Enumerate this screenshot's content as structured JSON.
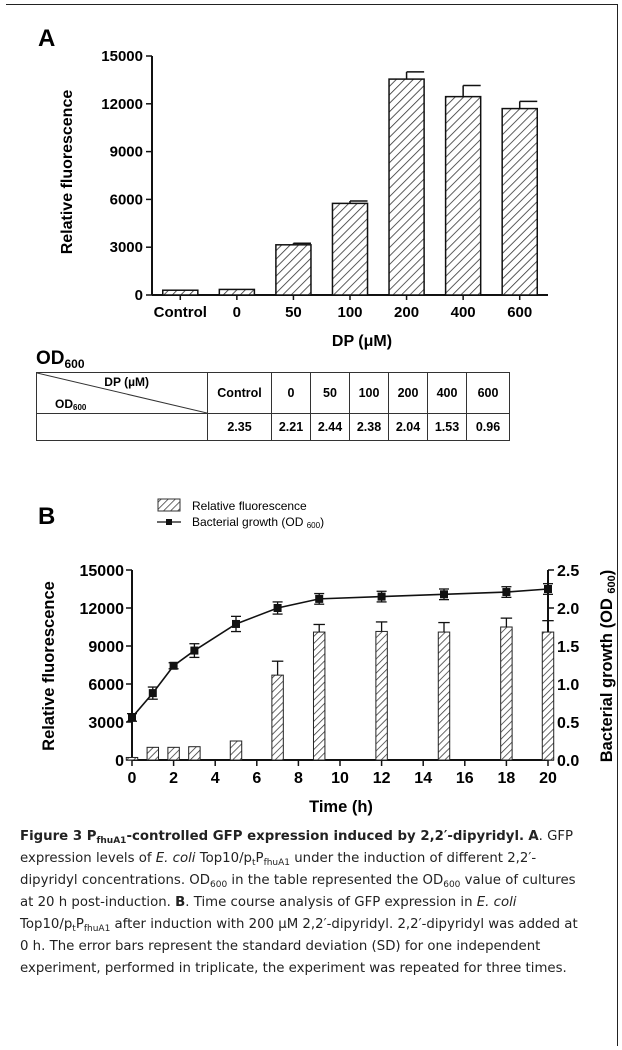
{
  "panel_a": {
    "letter": "A",
    "od_label_main": "OD",
    "od_label_sub": "600",
    "table": {
      "header_top": "DP (µM)",
      "header_bottom_main": "OD",
      "header_bottom_sub": "600",
      "columns": [
        "Control",
        "0",
        "50",
        "100",
        "200",
        "400",
        "600"
      ],
      "values": [
        "2.35",
        "2.21",
        "2.44",
        "2.38",
        "2.04",
        "1.53",
        "0.96"
      ]
    }
  },
  "panel_b": {
    "letter": "B",
    "legend_fluorescence": "Relative fluorescence",
    "legend_growth": "Bacterial growth (OD ",
    "legend_growth_sub": "600",
    "legend_growth_end": ")",
    "y2label": "Bacterial growth (OD ",
    "y2label_sub": "600",
    "y2label_end": ")"
  },
  "chart_data": [
    {
      "type": "bar",
      "title": "",
      "xlabel": "DP (μM)",
      "ylabel": "Relative fluorescence",
      "categories": [
        "Control",
        "0",
        "50",
        "100",
        "200",
        "400",
        "600"
      ],
      "values": [
        300,
        350,
        3150,
        5750,
        13550,
        12450,
        11700
      ],
      "errors": [
        0,
        0,
        100,
        150,
        450,
        700,
        450
      ],
      "ylim": [
        0,
        15000
      ],
      "yticks": [
        0,
        3000,
        6000,
        9000,
        12000,
        15000
      ]
    },
    {
      "type": "bar",
      "title": "",
      "xlabel": "Time (h)",
      "ylabel": "Relative fluorescence",
      "xlim": [
        0,
        20
      ],
      "xticks": [
        0,
        2,
        4,
        6,
        8,
        10,
        12,
        14,
        16,
        18,
        20
      ],
      "ylim": [
        0,
        15000
      ],
      "yticks": [
        0,
        3000,
        6000,
        9000,
        12000,
        15000
      ],
      "y2lim": [
        0,
        2.5
      ],
      "y2ticks": [
        "0.0",
        "0.5",
        "1.0",
        "1.5",
        "2.0",
        "2.5"
      ],
      "series": [
        {
          "name": "Relative fluorescence",
          "kind": "bar",
          "x": [
            0,
            1,
            2,
            3,
            5,
            7,
            9,
            12,
            15,
            18,
            20
          ],
          "values": [
            200,
            1000,
            1000,
            1050,
            1500,
            6700,
            10100,
            10150,
            10100,
            10500,
            10100
          ],
          "errors": [
            0,
            0,
            0,
            0,
            0,
            1100,
            600,
            750,
            750,
            700,
            900
          ]
        },
        {
          "name": "Bacterial growth (OD 600)",
          "kind": "line",
          "x": [
            0,
            1,
            2,
            3,
            5,
            7,
            9,
            12,
            15,
            18,
            20
          ],
          "values": [
            0.56,
            0.88,
            1.24,
            1.44,
            1.79,
            2.0,
            2.12,
            2.15,
            2.18,
            2.21,
            2.25
          ],
          "errors": [
            0.05,
            0.08,
            0.04,
            0.09,
            0.1,
            0.08,
            0.07,
            0.07,
            0.07,
            0.07,
            0.07
          ]
        }
      ]
    }
  ],
  "caption": {
    "title_lead": "Figure 3 P",
    "title_sub": "fhuA1",
    "title_rest": "-controlled GFP expression induced by 2,2′-dipyridyl.",
    "a_letter": "A",
    "a_t1": ". GFP expression levels of ",
    "a_ecoli": "E. coli",
    "a_t2": " Top10/p",
    "a_t_sub": "t",
    "a_P": "P",
    "a_fhua1": "fhuA1",
    "a_t3": " under the induction of different 2,2′-dipyridyl concentrations. OD",
    "a_sub600a": "600",
    "a_t4": " in the table represented the OD",
    "a_sub600b": "600",
    "a_t5": " value of cultures at 20 h post-induction. ",
    "b_letter": "B",
    "b_t1": ". Time course analysis of GFP expression in ",
    "b_ecoli": "E. coli",
    "b_t2": " Top10/p",
    "b_t_sub": "t",
    "b_P": "P",
    "b_fhua1": "fhuA1",
    "b_t3": " after induction with 200 μM 2,2′-dipyridyl. 2,2′-dipyridyl was added at 0 h. The error bars represent the standard deviation (SD) for one independent experiment, performed in triplicate, the experiment was repeated for three times."
  }
}
